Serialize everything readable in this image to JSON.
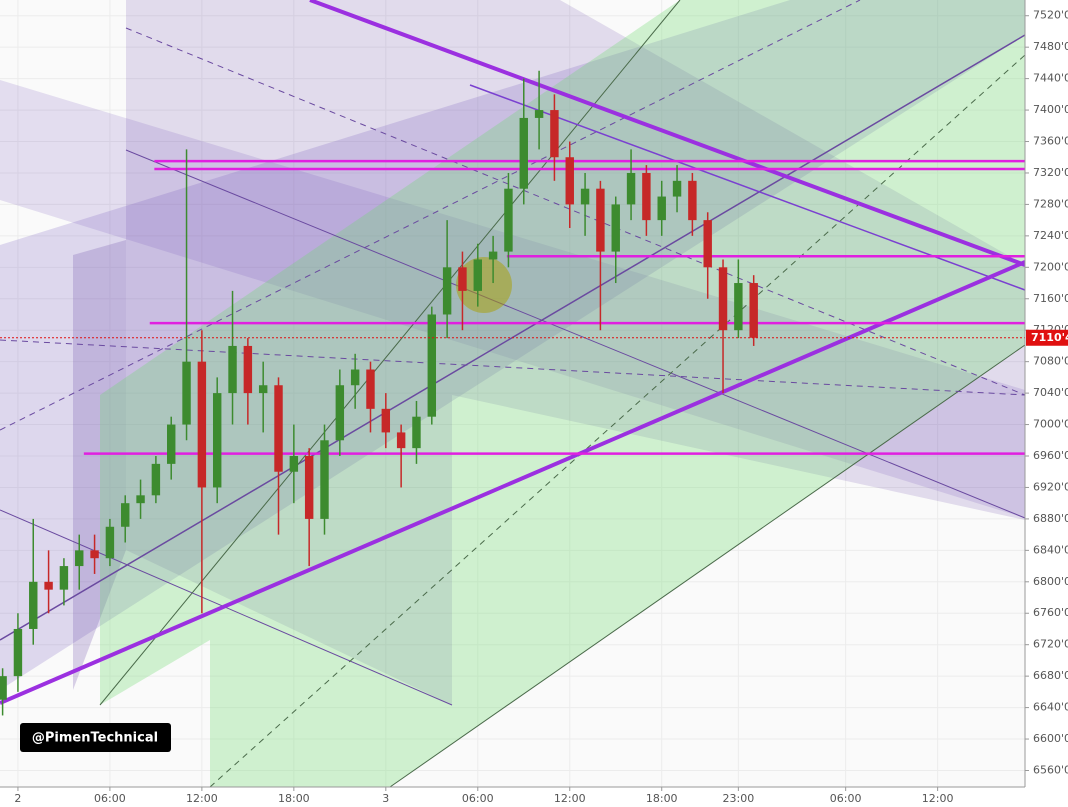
{
  "chart_data": {
    "type": "candlestick",
    "x": [
      -1,
      0,
      1,
      2,
      3,
      4,
      5,
      6,
      7,
      8,
      9,
      10,
      11,
      12,
      13,
      14,
      15,
      16,
      17,
      18,
      19,
      20,
      21,
      22,
      23,
      24,
      25,
      26,
      27,
      28,
      29,
      30,
      31,
      32,
      33,
      34,
      35,
      36,
      37,
      38,
      39,
      40,
      41,
      42,
      43,
      44,
      45,
      46,
      47,
      48
    ],
    "open": [
      6650,
      6680,
      6740,
      6800,
      6790,
      6820,
      6840,
      6830,
      6870,
      6900,
      6910,
      6950,
      7000,
      7080,
      6920,
      7040,
      7100,
      7040,
      7050,
      6940,
      6960,
      6880,
      6980,
      7050,
      7070,
      7020,
      6990,
      6970,
      7010,
      7140,
      7200,
      7170,
      7210,
      7220,
      7300,
      7390,
      7400,
      7340,
      7280,
      7300,
      7220,
      7280,
      7320,
      7260,
      7290,
      7310,
      7260,
      7200,
      7120,
      7180
    ],
    "high": [
      6690,
      6760,
      6880,
      6840,
      6830,
      6860,
      6860,
      6880,
      6910,
      6930,
      6960,
      7010,
      7350,
      7120,
      7060,
      7170,
      7110,
      7080,
      7060,
      7000,
      6970,
      7000,
      7070,
      7090,
      7080,
      7040,
      7000,
      7030,
      7150,
      7260,
      7220,
      7230,
      7240,
      7320,
      7440,
      7450,
      7420,
      7360,
      7320,
      7310,
      7290,
      7350,
      7330,
      7310,
      7330,
      7320,
      7270,
      7210,
      7210,
      7190
    ],
    "low": [
      6630,
      6660,
      6720,
      6760,
      6770,
      6790,
      6810,
      6820,
      6850,
      6880,
      6900,
      6930,
      6980,
      6760,
      6900,
      7000,
      7000,
      6990,
      6860,
      6900,
      6820,
      6860,
      6960,
      7020,
      6990,
      6970,
      6920,
      6950,
      7000,
      7110,
      7120,
      7150,
      7180,
      7200,
      7280,
      7350,
      7310,
      7250,
      7240,
      7120,
      7180,
      7260,
      7240,
      7240,
      7270,
      7240,
      7160,
      7040,
      7110,
      7100
    ],
    "close": [
      6680,
      6740,
      6800,
      6790,
      6820,
      6840,
      6830,
      6870,
      6900,
      6910,
      6950,
      7000,
      7080,
      6920,
      7040,
      7100,
      7040,
      7050,
      6940,
      6960,
      6880,
      6980,
      7050,
      7070,
      7020,
      6990,
      6970,
      7010,
      7140,
      7200,
      7170,
      7210,
      7220,
      7300,
      7390,
      7400,
      7340,
      7280,
      7300,
      7220,
      7280,
      7320,
      7260,
      7290,
      7310,
      7260,
      7200,
      7120,
      7180,
      7110.4
    ],
    "up_color": "#3d8b2f",
    "down_color": "#c62828",
    "xlim": [
      -1.17,
      65.7
    ],
    "ylim": [
      6539,
      7540
    ],
    "xticks": [
      {
        "value": 0,
        "label": "2"
      },
      {
        "value": 6,
        "label": "06:00"
      },
      {
        "value": 12,
        "label": "12:00"
      },
      {
        "value": 18,
        "label": "18:00"
      },
      {
        "value": 24,
        "label": "3"
      },
      {
        "value": 30,
        "label": "06:00"
      },
      {
        "value": 36,
        "label": "12:00"
      },
      {
        "value": 42,
        "label": "18:00"
      },
      {
        "value": 47,
        "label": "23:00"
      },
      {
        "value": 54,
        "label": "06:00"
      },
      {
        "value": 60,
        "label": "12:00"
      }
    ],
    "yticks": [
      {
        "value": 6560,
        "label": "6560'0"
      },
      {
        "value": 6600,
        "label": "6600'0"
      },
      {
        "value": 6640,
        "label": "6640'0"
      },
      {
        "value": 6680,
        "label": "6680'0"
      },
      {
        "value": 6720,
        "label": "6720'0"
      },
      {
        "value": 6760,
        "label": "6760'0"
      },
      {
        "value": 6800,
        "label": "6800'0"
      },
      {
        "value": 6840,
        "label": "6840'0"
      },
      {
        "value": 6880,
        "label": "6880'0"
      },
      {
        "value": 6920,
        "label": "6920'0"
      },
      {
        "value": 6960,
        "label": "6960'0"
      },
      {
        "value": 7000,
        "label": "7000'0"
      },
      {
        "value": 7040,
        "label": "7040'0"
      },
      {
        "value": 7080,
        "label": "7080'0"
      },
      {
        "value": 7120,
        "label": "7120'0"
      },
      {
        "value": 7160,
        "label": "7160'0"
      },
      {
        "value": 7200,
        "label": "7200'0"
      },
      {
        "value": 7240,
        "label": "7240'0"
      },
      {
        "value": 7280,
        "label": "7280'0"
      },
      {
        "value": 7320,
        "label": "7320'0"
      },
      {
        "value": 7360,
        "label": "7360'0"
      },
      {
        "value": 7400,
        "label": "7400'0"
      },
      {
        "value": 7440,
        "label": "7440'0"
      },
      {
        "value": 7480,
        "label": "7480'0"
      },
      {
        "value": 7520,
        "label": "7520'0"
      }
    ],
    "grid": true,
    "levels": [
      7335,
      7325,
      7214,
      7129,
      6963
    ],
    "level_starts": [
      8.9,
      8.9,
      31.9,
      8.6,
      4.3
    ],
    "level_color": "#e020e0",
    "last_price": 7110.4,
    "last_price_label": "7110'4",
    "last_price_color": "#e01010",
    "watermark": "@PimenTechnical"
  }
}
